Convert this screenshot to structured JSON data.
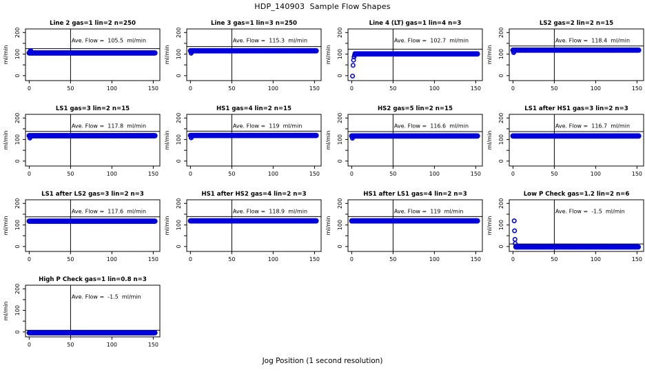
{
  "figure": {
    "title": "HDP_140903  Sample Flow Shapes",
    "xlabel": "Jog Position (1 second resolution)",
    "ylabel": "ml/min"
  },
  "colors": {
    "point_blue": "#0000dd",
    "axis_black": "#000000",
    "background": "#ffffff"
  },
  "chart_data": {
    "type": "scatter",
    "title": "HDP_140903  Sample Flow Shapes",
    "xlabel": "Jog Position (1 second resolution)",
    "ylabel": "ml/min",
    "xlim": [
      -4.5,
      158
    ],
    "ylim": [
      -23,
      217
    ],
    "x_ticks": [
      0,
      50,
      100,
      150
    ],
    "y_ticks": [
      0,
      50,
      100,
      150,
      200
    ],
    "y_tick_labels": [
      0,
      100,
      200
    ],
    "vline_x": 50,
    "grid": "off",
    "legend": "none",
    "panels": [
      {
        "title": "Line 2 gas=1 lin=2 n=250",
        "ave_flow": 105.5,
        "ave_label": "Ave. Flow =  105.5  ml/min",
        "band": {
          "y": 105.5,
          "x0": 0,
          "x1": 152
        },
        "ref_line": 125.5,
        "leads": [
          [
            0.8,
            112
          ],
          [
            1.4,
            116
          ],
          [
            2.0,
            115
          ],
          [
            2.6,
            110
          ]
        ]
      },
      {
        "title": "Line 3 gas=1 lin=3 n=250",
        "ave_flow": 115.3,
        "ave_label": "Ave. Flow =  115.3  ml/min",
        "band": {
          "y": 115.3,
          "x0": 0,
          "x1": 152
        },
        "ref_line": 135,
        "leads": [
          [
            0.8,
            104
          ],
          [
            1.6,
            109
          ]
        ]
      },
      {
        "title": "Line 4 (LT) gas=1 lin=4 n=3",
        "ave_flow": 102.7,
        "ave_label": "Ave. Flow =  102.7  ml/min",
        "band": {
          "y": 101,
          "x0": 4,
          "x1": 152
        },
        "ref_line": 123,
        "leads": [
          [
            1.0,
            -2
          ],
          [
            1.6,
            48
          ],
          [
            2.2,
            72
          ],
          [
            2.8,
            87
          ],
          [
            3.5,
            95
          ]
        ]
      },
      {
        "title": "LS2 gas=2 lin=2 n=15",
        "ave_flow": 118.4,
        "ave_label": "Ave. Flow =  118.4  ml/min",
        "band": {
          "y": 118.4,
          "x0": 0,
          "x1": 152
        },
        "ref_line": 138,
        "leads": [
          [
            0.8,
            107
          ],
          [
            1.6,
            112
          ]
        ]
      },
      {
        "title": "LS1 gas=3 lin=2 n=15",
        "ave_flow": 117.8,
        "ave_label": "Ave. Flow =  117.8  ml/min",
        "band": {
          "y": 117.8,
          "x0": 0,
          "x1": 152
        },
        "ref_line": 138,
        "leads": [
          [
            0.8,
            107
          ],
          [
            1.6,
            112
          ]
        ]
      },
      {
        "title": "HS1 gas=4 lin=2 n=15",
        "ave_flow": 119,
        "ave_label": "Ave. Flow =  119  ml/min",
        "band": {
          "y": 119,
          "x0": 0,
          "x1": 152
        },
        "ref_line": 139,
        "leads": [
          [
            0.8,
            108
          ],
          [
            1.6,
            113
          ]
        ]
      },
      {
        "title": "HS2 gas=5 lin=2 n=15",
        "ave_flow": 116.6,
        "ave_label": "Ave. Flow =  116.6  ml/min",
        "band": {
          "y": 116.6,
          "x0": 0,
          "x1": 152
        },
        "ref_line": 137,
        "leads": [
          [
            0.8,
            106
          ],
          [
            1.6,
            111
          ]
        ]
      },
      {
        "title": "LS1 after HS1 gas=3 lin=2 n=3",
        "ave_flow": 116.7,
        "ave_label": "Ave. Flow =  116.7  ml/min",
        "band": {
          "y": 116.7,
          "x0": 0,
          "x1": 152
        },
        "ref_line": 137,
        "leads": []
      },
      {
        "title": "LS1 after LS2 gas=3 lin=2 n=3",
        "ave_flow": 117.6,
        "ave_label": "Ave. Flow =  117.6  ml/min",
        "band": {
          "y": 117.6,
          "x0": 0,
          "x1": 152
        },
        "ref_line": 138,
        "leads": []
      },
      {
        "title": "HS1 after HS2 gas=4 lin=2 n=3",
        "ave_flow": 118.9,
        "ave_label": "Ave. Flow =  118.9  ml/min",
        "band": {
          "y": 118.9,
          "x0": 0,
          "x1": 152
        },
        "ref_line": 139,
        "leads": []
      },
      {
        "title": "HS1 after LS1 gas=4 lin=2 n=3",
        "ave_flow": 119,
        "ave_label": "Ave. Flow =  119  ml/min",
        "band": {
          "y": 119,
          "x0": 0,
          "x1": 152
        },
        "ref_line": 139,
        "leads": []
      },
      {
        "title": "Low P Check gas=1.2 lin=2 n=6",
        "ave_flow": -1.5,
        "ave_label": "Ave. Flow =  -1.5  ml/min",
        "band": {
          "y": -2,
          "x0": 3.5,
          "x1": 152
        },
        "ref_line": 12,
        "leads": [
          [
            1.5,
            119
          ],
          [
            1.9,
            73
          ],
          [
            2.4,
            33
          ],
          [
            2.7,
            14
          ]
        ]
      },
      {
        "title": "High P Check gas=1 lin=0.8 n=3",
        "ave_flow": -1.5,
        "ave_label": "Ave. Flow =  -1.5  ml/min",
        "band": {
          "y": -4,
          "x0": 0,
          "x1": 152
        },
        "ref_line": 8,
        "leads": []
      }
    ]
  }
}
